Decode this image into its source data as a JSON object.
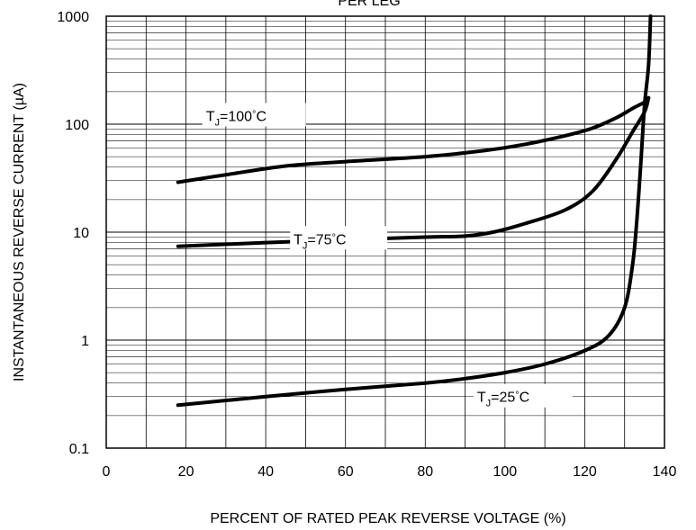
{
  "chart_data": {
    "type": "line",
    "title": "PER LEG",
    "xlabel": "PERCENT OF RATED PEAK REVERSE VOLTAGE (%)",
    "ylabel": "INSTANTANEOUS REVERSE CURRENT (µA)",
    "xlim": [
      0,
      140
    ],
    "ylim": [
      0.1,
      1000
    ],
    "yscale": "log",
    "grid": true,
    "x_ticks": [
      "0",
      "20",
      "40",
      "60",
      "80",
      "100",
      "120",
      "140"
    ],
    "y_ticks": [
      "0.1",
      "1",
      "10",
      "100",
      "1000"
    ],
    "series": [
      {
        "name": "TJ=100°C",
        "label_text": {
          "main": "T",
          "sub": "J",
          "rest": "=100",
          "deg": "°",
          "unit": "C"
        },
        "x": [
          18,
          30,
          45,
          60,
          80,
          95,
          105,
          115,
          122,
          128,
          132,
          135,
          136
        ],
        "y": [
          29,
          34,
          41,
          45,
          50,
          57,
          65,
          78,
          92,
          115,
          140,
          160,
          175
        ]
      },
      {
        "name": "TJ=75°C",
        "label_text": {
          "main": "T",
          "sub": "J",
          "rest": "=75",
          "deg": "°",
          "unit": "C"
        },
        "x": [
          18,
          40,
          60,
          80,
          90,
          97,
          105,
          115,
          122,
          128,
          132,
          135,
          136
        ],
        "y": [
          7.4,
          8.0,
          8.5,
          9.0,
          9.2,
          10,
          12,
          16,
          24,
          48,
          85,
          130,
          175
        ]
      },
      {
        "name": "TJ=25°C",
        "label_text": {
          "main": "T",
          "sub": "J",
          "rest": "=25",
          "deg": "°",
          "unit": "C"
        },
        "x": [
          18,
          40,
          60,
          80,
          90,
          100,
          110,
          120,
          126,
          130,
          132,
          133,
          134,
          135,
          136,
          136.5
        ],
        "y": [
          0.25,
          0.3,
          0.35,
          0.4,
          0.44,
          0.5,
          0.6,
          0.8,
          1.1,
          2,
          5,
          12,
          40,
          150,
          350,
          1000
        ]
      }
    ]
  }
}
